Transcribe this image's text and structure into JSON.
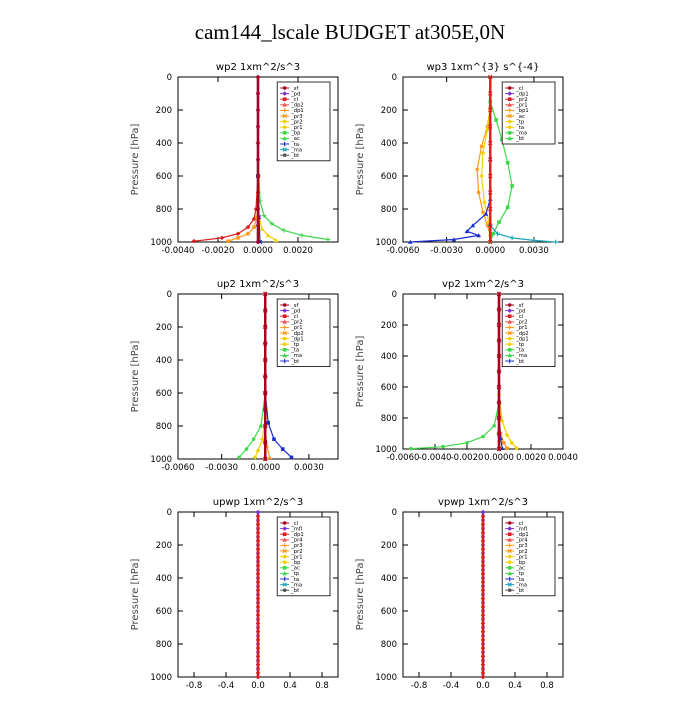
{
  "page": {
    "title": "cam144_lscale  BUDGET at305E,0N"
  },
  "colors": {
    "red": "#d81e1e",
    "darkred": "#a8001e",
    "purple": "#7c2fd0",
    "pink": "#f05050",
    "orange": "#ff9a1a",
    "yellow": "#f0d000",
    "green": "#3ed84a",
    "blue": "#1a2ed0",
    "teal": "#1aa5b8",
    "gray": "#555555",
    "cyan": "#20d8f0"
  },
  "chart_data": [
    {
      "type": "line",
      "title": "wp2  1xm^2/s^3",
      "ylabel": "Pressure [hPa]",
      "xlim": [
        -0.004,
        0.004
      ],
      "ylim": [
        1000,
        0
      ],
      "xticks": [
        -0.004,
        -0.002,
        0,
        0.002
      ],
      "xtick_labels": [
        "-0.0040",
        "-0.0020",
        "0.0000",
        "0.0020"
      ],
      "yticks": [
        0,
        200,
        400,
        600,
        800,
        1000
      ],
      "ytick_labels": [
        "0",
        "200",
        "400",
        "600",
        "800",
        "1000"
      ],
      "legend": [
        "_sf",
        "_pd",
        "_cl",
        "_dp2",
        "_dp1",
        "_pr3",
        "_pr2",
        "_pr1",
        "_bp",
        "_ac",
        "_ta",
        "_ma",
        "_bt"
      ],
      "series": [
        {
          "name": "_pd",
          "color": "purple",
          "x": [
            0,
            0,
            0,
            0,
            0,
            0,
            0,
            0,
            0,
            0,
            0
          ],
          "y": [
            0,
            100,
            200,
            300,
            400,
            500,
            600,
            700,
            800,
            900,
            1000
          ]
        },
        {
          "name": "_cl",
          "color": "red",
          "x": [
            0,
            -0.0001,
            -0.0002,
            -0.0005,
            -0.001,
            -0.0018,
            -0.0032
          ],
          "y": [
            600,
            800,
            860,
            910,
            950,
            975,
            995
          ]
        },
        {
          "name": "_dp2",
          "color": "orange",
          "x": [
            0,
            -5e-05,
            -0.0002,
            -0.0005,
            -0.001,
            -0.0015
          ],
          "y": [
            700,
            850,
            910,
            950,
            975,
            995
          ]
        },
        {
          "name": "_pr1",
          "color": "yellow",
          "x": [
            0,
            5e-05,
            0.0002,
            0.0005,
            0.0009
          ],
          "y": [
            700,
            850,
            920,
            960,
            990
          ]
        },
        {
          "name": "_bp",
          "color": "green",
          "x": [
            0,
            5e-05,
            0.0001,
            0.0003,
            0.0007,
            0.0013,
            0.0022,
            0.0035
          ],
          "y": [
            400,
            600,
            750,
            840,
            890,
            930,
            960,
            985
          ]
        },
        {
          "name": "_ac",
          "color": "blue",
          "x": [
            0,
            5e-05,
            0.0001
          ],
          "y": [
            600,
            850,
            1000
          ]
        },
        {
          "name": "_sf",
          "color": "darkred",
          "x": [
            0,
            0,
            0,
            0,
            0,
            0,
            0,
            0,
            0,
            0,
            0
          ],
          "y": [
            0,
            100,
            200,
            300,
            400,
            500,
            600,
            700,
            800,
            900,
            1000
          ]
        }
      ]
    },
    {
      "type": "line",
      "title": "wp3  1xm^{3} s^{-4}",
      "ylabel": "Pressure [hPa]",
      "xlim": [
        -0.006,
        0.005
      ],
      "ylim": [
        1000,
        0
      ],
      "xticks": [
        -0.006,
        -0.003,
        0,
        0.003
      ],
      "xtick_labels": [
        "-0.0060",
        "-0.0030",
        "0.0000",
        "0.0030"
      ],
      "yticks": [
        0,
        200,
        400,
        600,
        800,
        1000
      ],
      "ytick_labels": [
        "0",
        "200",
        "400",
        "600",
        "800",
        "1000"
      ],
      "legend": [
        "_cl",
        "_dp1",
        "_pr2",
        "_pr1",
        "_bp1",
        "_ac",
        "_tp",
        "_ta",
        "_ma",
        "_bt"
      ],
      "series": [
        {
          "name": "_pr2",
          "color": "orange",
          "x": [
            0,
            -0.0002,
            -0.0006,
            -0.0009,
            -0.0008,
            -0.0005,
            -0.0002,
            0
          ],
          "y": [
            180,
            300,
            420,
            560,
            700,
            820,
            900,
            960
          ]
        },
        {
          "name": "_pr1",
          "color": "yellow",
          "x": [
            0,
            -0.0002,
            -0.0005,
            -0.0006,
            -0.0004,
            -0.0001,
            0
          ],
          "y": [
            200,
            320,
            460,
            600,
            760,
            880,
            960
          ]
        },
        {
          "name": "_ac",
          "color": "green",
          "x": [
            0,
            0.0004,
            0.0008,
            0.0012,
            0.0015,
            0.0012,
            0.0006,
            0.0002,
            0
          ],
          "y": [
            150,
            260,
            380,
            520,
            660,
            790,
            880,
            950,
            1000
          ]
        },
        {
          "name": "_tp",
          "color": "blue",
          "x": [
            0,
            0,
            -0.0003,
            -0.0012,
            -0.0016,
            -0.0008,
            -0.0025,
            -0.0055
          ],
          "y": [
            500,
            740,
            830,
            900,
            935,
            960,
            985,
            1000
          ]
        },
        {
          "name": "_bp1",
          "color": "teal",
          "x": [
            0,
            0.0005,
            0.0015,
            0.003,
            0.0045
          ],
          "y": [
            900,
            950,
            975,
            990,
            1000
          ]
        },
        {
          "name": "_cl",
          "color": "red",
          "x": [
            0,
            0,
            0,
            0,
            0,
            0,
            0,
            0,
            0,
            0,
            0
          ],
          "y": [
            0,
            100,
            200,
            300,
            400,
            500,
            600,
            700,
            800,
            900,
            1000
          ]
        }
      ]
    },
    {
      "type": "line",
      "title": "up2  1xm^2/s^3",
      "ylabel": "Pressure [hPa]",
      "xlim": [
        -0.006,
        0.005
      ],
      "ylim": [
        1000,
        0
      ],
      "xticks": [
        -0.006,
        -0.003,
        0,
        0.003
      ],
      "xtick_labels": [
        "-0.0060",
        "-0.0030",
        "0.0000",
        "0.0030"
      ],
      "yticks": [
        0,
        200,
        400,
        600,
        800,
        1000
      ],
      "ytick_labels": [
        "0",
        "200",
        "400",
        "600",
        "800",
        "1000"
      ],
      "legend": [
        "_sf",
        "_pd",
        "_cl",
        "_pr2",
        "_pr1",
        "_dp2",
        "_dp1",
        "_tp",
        "_ta",
        "_ma",
        "_bt"
      ],
      "series": [
        {
          "name": "_dp1",
          "color": "green",
          "x": [
            0,
            -0.0003,
            -0.0008,
            -0.0013,
            -0.0018
          ],
          "y": [
            600,
            800,
            880,
            940,
            990
          ]
        },
        {
          "name": "_pr1",
          "color": "yellow",
          "x": [
            0,
            -0.0002,
            -0.0005,
            -0.0007
          ],
          "y": [
            750,
            880,
            950,
            990
          ]
        },
        {
          "name": "_tp",
          "color": "blue",
          "x": [
            0,
            0.0002,
            0.0006,
            0.0012,
            0.0018
          ],
          "y": [
            600,
            780,
            880,
            940,
            990
          ]
        },
        {
          "name": "_pr2",
          "color": "orange",
          "x": [
            0,
            0.0001,
            0.0003
          ],
          "y": [
            800,
            920,
            990
          ]
        },
        {
          "name": "_cl",
          "color": "red",
          "x": [
            0,
            0,
            0,
            0,
            0,
            0,
            0,
            0,
            0,
            0,
            0
          ],
          "y": [
            0,
            100,
            200,
            300,
            400,
            500,
            600,
            700,
            800,
            900,
            1000
          ]
        },
        {
          "name": "_sf",
          "color": "darkred",
          "x": [
            0,
            0,
            0,
            0,
            0,
            0,
            0,
            0,
            0,
            0,
            0
          ],
          "y": [
            0,
            100,
            200,
            300,
            400,
            500,
            600,
            700,
            800,
            900,
            1000
          ]
        }
      ]
    },
    {
      "type": "line",
      "title": "vp2  1xm^2/s^3",
      "ylabel": "Pressure [hPa]",
      "xlim": [
        -0.006,
        0.004
      ],
      "ylim": [
        1000,
        0
      ],
      "xticks": [
        -0.006,
        -0.004,
        -0.002,
        0,
        0.002,
        0.004
      ],
      "xtick_labels": [
        "-0.0060",
        "-0.0040",
        "-0.0020",
        "0.0000",
        "0.0020",
        "0.0040"
      ],
      "yticks": [
        0,
        200,
        400,
        600,
        800,
        1000
      ],
      "ytick_labels": [
        "0",
        "200",
        "400",
        "600",
        "800",
        "1000"
      ],
      "legend": [
        "_sf",
        "_pd",
        "_cl",
        "_pr2",
        "_pr1",
        "_dp2",
        "_dp1",
        "_tp",
        "_ta",
        "_ma",
        "_bt"
      ],
      "series": [
        {
          "name": "_dp1",
          "color": "green",
          "x": [
            0,
            -0.0003,
            -0.001,
            -0.002,
            -0.0035,
            -0.0055
          ],
          "y": [
            700,
            850,
            920,
            960,
            985,
            998
          ]
        },
        {
          "name": "_pr1",
          "color": "yellow",
          "x": [
            0,
            0.0002,
            0.0005,
            0.0008,
            0.0011
          ],
          "y": [
            650,
            820,
            910,
            960,
            995
          ]
        },
        {
          "name": "_pr2",
          "color": "orange",
          "x": [
            0,
            0.0001,
            0.0003,
            0.0005
          ],
          "y": [
            780,
            900,
            960,
            995
          ]
        },
        {
          "name": "_tp",
          "color": "blue",
          "x": [
            0,
            0.0001,
            0.0002
          ],
          "y": [
            800,
            930,
            995
          ]
        },
        {
          "name": "_cl",
          "color": "red",
          "x": [
            0,
            0,
            0,
            0,
            0,
            0,
            0,
            0,
            0,
            0,
            0
          ],
          "y": [
            0,
            100,
            200,
            300,
            400,
            500,
            600,
            700,
            800,
            900,
            1000
          ]
        },
        {
          "name": "_sf",
          "color": "darkred",
          "x": [
            0,
            0,
            0,
            0,
            0,
            0,
            0,
            0,
            0,
            0,
            0
          ],
          "y": [
            0,
            100,
            200,
            300,
            400,
            500,
            600,
            700,
            800,
            900,
            1000
          ]
        }
      ]
    },
    {
      "type": "line",
      "title": "upwp  1xm^2/s^3",
      "ylabel": "Pressure [hPa]",
      "xlim": [
        -1.0,
        1.0
      ],
      "ylim": [
        1000,
        0
      ],
      "xticks": [
        -0.8,
        -0.4,
        0,
        0.4,
        0.8
      ],
      "xtick_labels": [
        "-0.8",
        "-0.4",
        "0.0",
        "0.4",
        "0.8"
      ],
      "yticks": [
        0,
        200,
        400,
        600,
        800,
        1000
      ],
      "ytick_labels": [
        "0",
        "200",
        "400",
        "600",
        "800",
        "1000"
      ],
      "legend": [
        "_cl",
        "_mfl",
        "_dp1",
        "_pr4",
        "_pr3",
        "_pr2",
        "_pr1",
        "_bp",
        "_ac",
        "_tp",
        "_ta",
        "_ma",
        "_bt"
      ],
      "series": [
        {
          "name": "_cl",
          "color": "purple",
          "x": [
            0,
            0,
            0,
            0,
            0,
            0,
            0,
            0,
            0,
            0,
            0,
            0,
            0,
            0,
            0,
            0,
            0,
            0,
            0,
            0,
            0
          ],
          "y": [
            0,
            50,
            100,
            150,
            200,
            250,
            300,
            350,
            400,
            450,
            500,
            550,
            600,
            650,
            700,
            750,
            800,
            850,
            900,
            950,
            1000
          ]
        },
        {
          "name": "_dp1",
          "color": "red",
          "x": [
            0,
            0,
            0,
            0,
            0,
            0,
            0,
            0,
            0,
            0,
            0,
            0,
            0,
            0,
            0,
            0,
            0,
            0,
            0,
            0,
            0
          ],
          "y": [
            25,
            75,
            125,
            175,
            225,
            275,
            325,
            375,
            425,
            475,
            525,
            575,
            625,
            675,
            725,
            775,
            825,
            875,
            925,
            975,
            1000
          ]
        }
      ]
    },
    {
      "type": "line",
      "title": "vpwp  1xm^2/s^3",
      "ylabel": "Pressure [hPa]",
      "xlim": [
        -1.0,
        1.0
      ],
      "ylim": [
        1000,
        0
      ],
      "xticks": [
        -0.8,
        -0.4,
        0,
        0.4,
        0.8
      ],
      "xtick_labels": [
        "-0.8",
        "-0.4",
        "0.0",
        "0.4",
        "0.8"
      ],
      "yticks": [
        0,
        200,
        400,
        600,
        800,
        1000
      ],
      "ytick_labels": [
        "0",
        "200",
        "400",
        "600",
        "800",
        "1000"
      ],
      "legend": [
        "_cl",
        "_mfl",
        "_dp1",
        "_pr4",
        "_pr3",
        "_pr2",
        "_pr1",
        "_bp",
        "_ac",
        "_tp",
        "_ta",
        "_ma",
        "_bt"
      ],
      "series": [
        {
          "name": "_cl",
          "color": "purple",
          "x": [
            0,
            0,
            0,
            0,
            0,
            0,
            0,
            0,
            0,
            0,
            0,
            0,
            0,
            0,
            0,
            0,
            0,
            0,
            0,
            0,
            0
          ],
          "y": [
            0,
            50,
            100,
            150,
            200,
            250,
            300,
            350,
            400,
            450,
            500,
            550,
            600,
            650,
            700,
            750,
            800,
            850,
            900,
            950,
            1000
          ]
        },
        {
          "name": "_dp1",
          "color": "red",
          "x": [
            0,
            0,
            0,
            0,
            0,
            0,
            0,
            0,
            0,
            0,
            0,
            0,
            0,
            0,
            0,
            0,
            0,
            0,
            0,
            0,
            0
          ],
          "y": [
            25,
            75,
            125,
            175,
            225,
            275,
            325,
            375,
            425,
            475,
            525,
            575,
            625,
            675,
            725,
            775,
            825,
            875,
            925,
            975,
            1000
          ]
        }
      ]
    }
  ]
}
